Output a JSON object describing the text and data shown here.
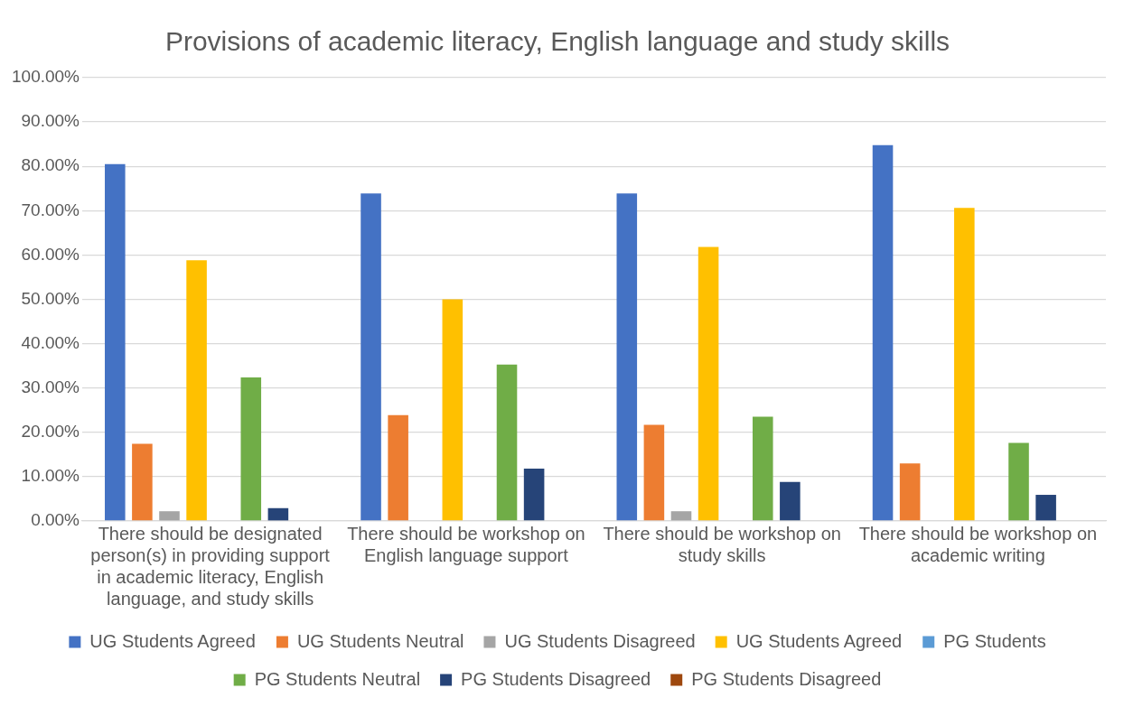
{
  "chart_data": {
    "type": "bar",
    "title": "Provisions of academic literacy, English language and study skills",
    "categories": [
      "There should be designated person(s) in providing support in academic literacy, English language, and study skills",
      "There should be workshop on English language support",
      "There should be workshop on study skills",
      "There should be workshop on academic writing"
    ],
    "series": [
      {
        "name": "UG Students Agreed",
        "color": "#4472c4",
        "values": [
          80.5,
          73.9,
          73.9,
          84.8
        ]
      },
      {
        "name": "UG Students Neutral",
        "color": "#ed7d31",
        "values": [
          17.4,
          23.9,
          21.7,
          13.0
        ]
      },
      {
        "name": "UG Students Disagreed",
        "color": "#a5a5a5",
        "values": [
          2.2,
          0,
          2.2,
          0
        ]
      },
      {
        "name": "UG Students Agreed",
        "color": "#ffc000",
        "values": [
          58.8,
          50.0,
          61.8,
          70.6
        ]
      },
      {
        "name": "PG Students",
        "color": "#5b9bd5",
        "values": [
          0,
          0,
          0,
          0
        ]
      },
      {
        "name": "PG Students Neutral",
        "color": "#70ad47",
        "values": [
          32.4,
          35.3,
          23.5,
          17.6
        ]
      },
      {
        "name": "PG Students Disagreed",
        "color": "#264478",
        "values": [
          2.9,
          11.8,
          8.8,
          5.9
        ]
      },
      {
        "name": "PG Students Disagreed",
        "color": "#9e480e",
        "values": [
          0,
          0,
          0,
          0
        ]
      }
    ],
    "ylim": [
      0,
      100
    ],
    "yticks": [
      {
        "value": 0,
        "label": "0.00%"
      },
      {
        "value": 10,
        "label": "10.00%"
      },
      {
        "value": 20,
        "label": "20.00%"
      },
      {
        "value": 30,
        "label": "30.00%"
      },
      {
        "value": 40,
        "label": "40.00%"
      },
      {
        "value": 50,
        "label": "50.00%"
      },
      {
        "value": 60,
        "label": "60.00%"
      },
      {
        "value": 70,
        "label": "70.00%"
      },
      {
        "value": 80,
        "label": "80.00%"
      },
      {
        "value": 90,
        "label": "90.00%"
      },
      {
        "value": 100,
        "label": "100.00%"
      }
    ],
    "grid": "y",
    "legend": "bottom"
  }
}
